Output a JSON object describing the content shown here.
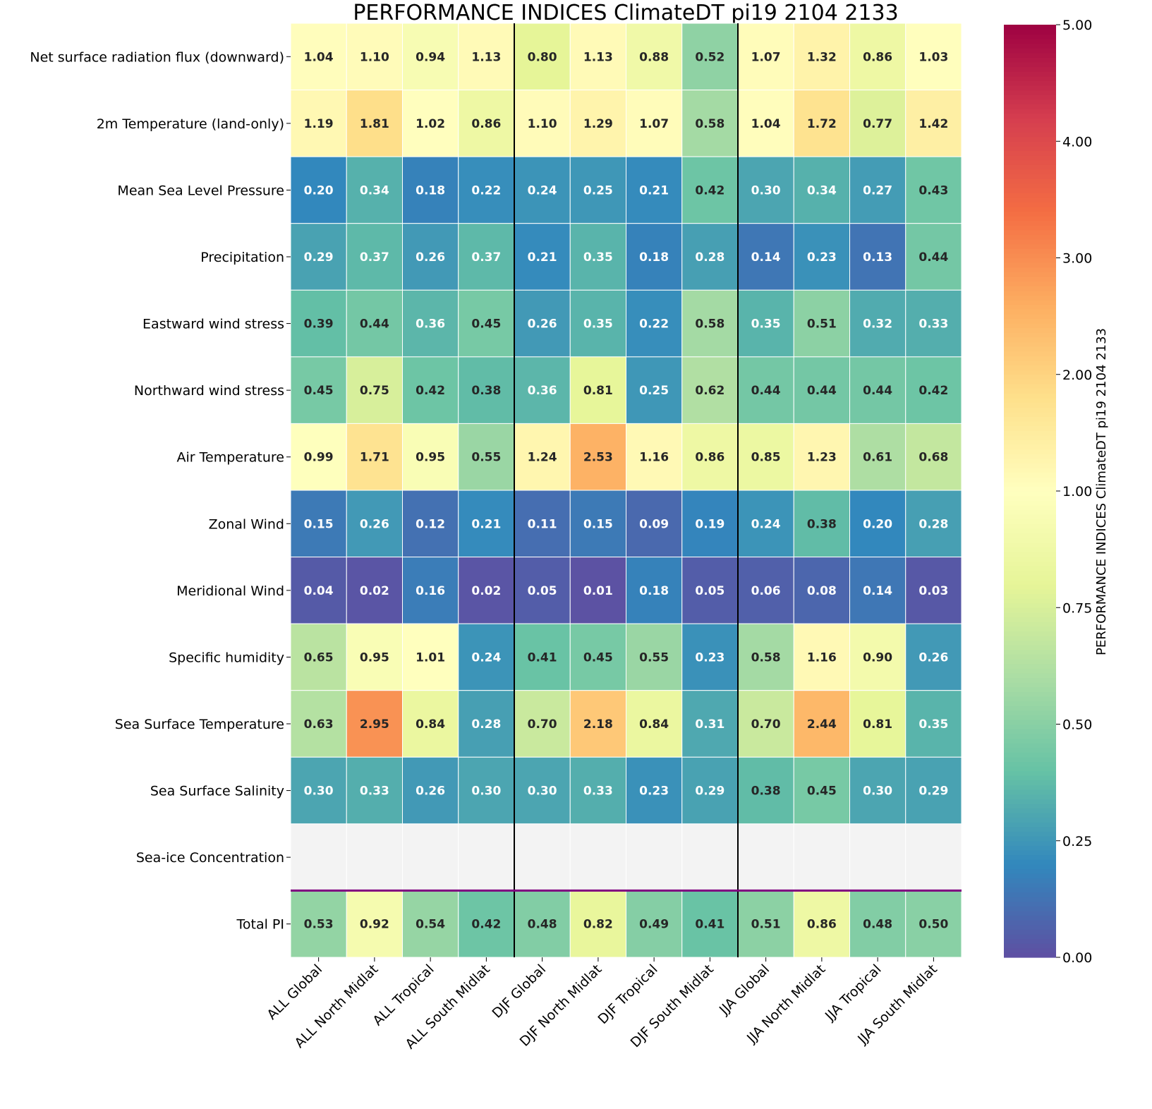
{
  "chart_data": {
    "type": "heatmap",
    "title": "PERFORMANCE INDICES ClimateDT pi19 2104 2133",
    "columns": [
      "ALL Global",
      "ALL North Midlat",
      "ALL Tropical",
      "ALL South Midlat",
      "DJF Global",
      "DJF North Midlat",
      "DJF Tropical",
      "DJF South Midlat",
      "JJA Global",
      "JJA North Midlat",
      "JJA Tropical",
      "JJA South Midlat"
    ],
    "rows": [
      "Net surface radiation flux (downward)",
      "2m Temperature (land-only)",
      "Mean Sea Level Pressure",
      "Precipitation",
      "Eastward wind stress",
      "Northward wind stress",
      "Air Temperature",
      "Zonal Wind",
      "Meridional Wind",
      "Specific humidity",
      "Sea Surface Temperature",
      "Sea Surface Salinity",
      "Sea-ice Concentration",
      "Total PI"
    ],
    "values": [
      [
        1.04,
        1.1,
        0.94,
        1.13,
        0.8,
        1.13,
        0.88,
        0.52,
        1.07,
        1.32,
        0.86,
        1.03
      ],
      [
        1.19,
        1.81,
        1.02,
        0.86,
        1.1,
        1.29,
        1.07,
        0.58,
        1.04,
        1.72,
        0.77,
        1.42
      ],
      [
        0.2,
        0.34,
        0.18,
        0.22,
        0.24,
        0.25,
        0.21,
        0.42,
        0.3,
        0.34,
        0.27,
        0.43
      ],
      [
        0.29,
        0.37,
        0.26,
        0.37,
        0.21,
        0.35,
        0.18,
        0.28,
        0.14,
        0.23,
        0.13,
        0.44
      ],
      [
        0.39,
        0.44,
        0.36,
        0.45,
        0.26,
        0.35,
        0.22,
        0.58,
        0.35,
        0.51,
        0.32,
        0.33
      ],
      [
        0.45,
        0.75,
        0.42,
        0.38,
        0.36,
        0.81,
        0.25,
        0.62,
        0.44,
        0.44,
        0.44,
        0.42
      ],
      [
        0.99,
        1.71,
        0.95,
        0.55,
        1.24,
        2.53,
        1.16,
        0.86,
        0.85,
        1.23,
        0.61,
        0.68
      ],
      [
        0.15,
        0.26,
        0.12,
        0.21,
        0.11,
        0.15,
        0.09,
        0.19,
        0.24,
        0.38,
        0.2,
        0.28
      ],
      [
        0.04,
        0.02,
        0.16,
        0.02,
        0.05,
        0.01,
        0.18,
        0.05,
        0.06,
        0.08,
        0.14,
        0.03
      ],
      [
        0.65,
        0.95,
        1.01,
        0.24,
        0.41,
        0.45,
        0.55,
        0.23,
        0.58,
        1.16,
        0.9,
        0.26
      ],
      [
        0.63,
        2.95,
        0.84,
        0.28,
        0.7,
        2.18,
        0.84,
        0.31,
        0.7,
        2.44,
        0.81,
        0.35
      ],
      [
        0.3,
        0.33,
        0.26,
        0.3,
        0.3,
        0.33,
        0.23,
        0.29,
        0.38,
        0.45,
        0.3,
        0.29
      ],
      [
        null,
        null,
        null,
        null,
        null,
        null,
        null,
        null,
        null,
        null,
        null,
        null
      ],
      [
        0.53,
        0.92,
        0.54,
        0.42,
        0.48,
        0.82,
        0.49,
        0.41,
        0.51,
        0.86,
        0.48,
        0.5
      ]
    ],
    "colormap": "Spectral_r",
    "missing_color": "#f3f3f3",
    "vmin": 0,
    "vcenter": 1,
    "vmax": 5,
    "colorbar": {
      "label": "PERFORMANCE INDICES ClimateDT pi19 2104 2133",
      "ticks": [
        0,
        0.25,
        0.5,
        0.75,
        1,
        2,
        3,
        4,
        5
      ],
      "tick_labels": [
        "0.00",
        "0.25",
        "0.50",
        "0.75",
        "1.00",
        "2.00",
        "3.00",
        "4.00",
        "5.00"
      ]
    },
    "separator_color": "#800080"
  }
}
